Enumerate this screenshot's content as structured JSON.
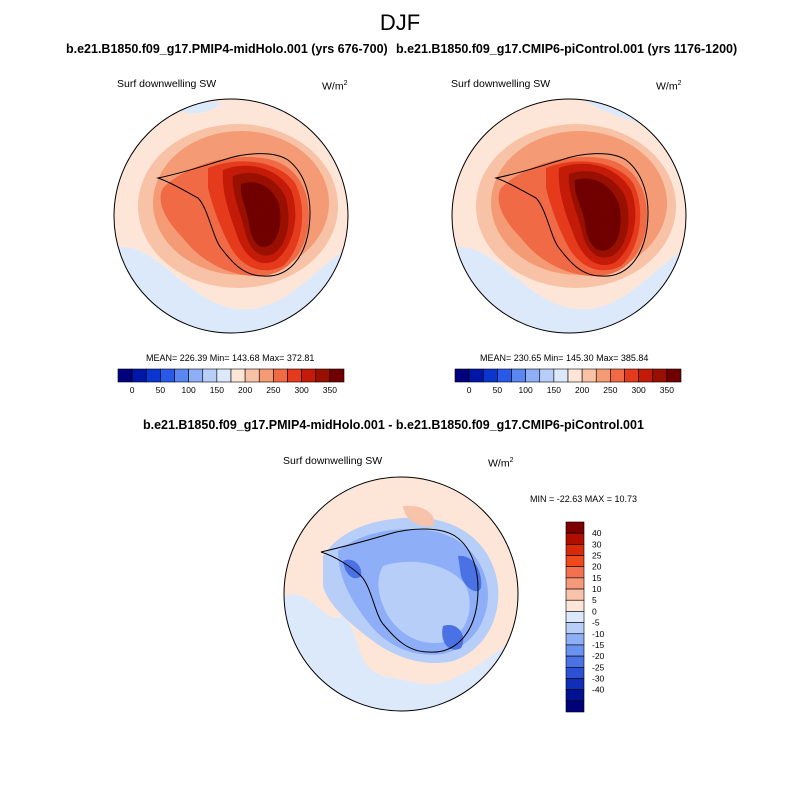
{
  "season": "DJF",
  "panels": [
    {
      "title": "b.e21.B1850.f09_g17.PMIP4-midHolo.001 (yrs 676-700)",
      "variable": "Surf downwelling SW",
      "unit_base": "W/m",
      "unit_exp": "2",
      "stats": "MEAN= 226.39  Min= 143.68  Max= 372.81"
    },
    {
      "title": "b.e21.B1850.f09_g17.CMIP6-piControl.001 (yrs 1176-1200)",
      "variable": "Surf downwelling SW",
      "unit_base": "W/m",
      "unit_exp": "2",
      "stats": "MEAN= 230.65  Min= 145.30  Max= 385.84"
    }
  ],
  "diff_panel": {
    "title": "b.e21.B1850.f09_g17.PMIP4-midHolo.001 - b.e21.B1850.f09_g17.CMIP6-piControl.001",
    "variable": "Surf downwelling SW",
    "unit_base": "W/m",
    "unit_exp": "2",
    "stats": "MIN = -22.63 MAX =  10.73"
  },
  "colorbar_main": {
    "colors": [
      "#00007f",
      "#0016a8",
      "#0a35cf",
      "#2a58e8",
      "#5a86f2",
      "#8eaef7",
      "#b6cef8",
      "#dce9fb",
      "#fde6d8",
      "#f8c2a6",
      "#f49a75",
      "#ef6a45",
      "#e53a1b",
      "#c41a08",
      "#991000",
      "#700000"
    ],
    "labels": [
      "0",
      "50",
      "100",
      "150",
      "200",
      "250",
      "300",
      "350"
    ]
  },
  "colorbar_diff": {
    "colors": [
      "#7d0000",
      "#b00f00",
      "#d62a09",
      "#ee4a1c",
      "#f27150",
      "#f4997a",
      "#f7c3aa",
      "#fde6d8",
      "#dce9fb",
      "#b6cef8",
      "#8eaef7",
      "#6b92f0",
      "#4a72e4",
      "#2a52d2",
      "#0f2fb8",
      "#00128f",
      "#00007a"
    ],
    "labels": [
      "40",
      "30",
      "25",
      "20",
      "15",
      "10",
      "5",
      "0",
      "-5",
      "-10",
      "-15",
      "-20",
      "-25",
      "-30",
      "-40"
    ]
  }
}
